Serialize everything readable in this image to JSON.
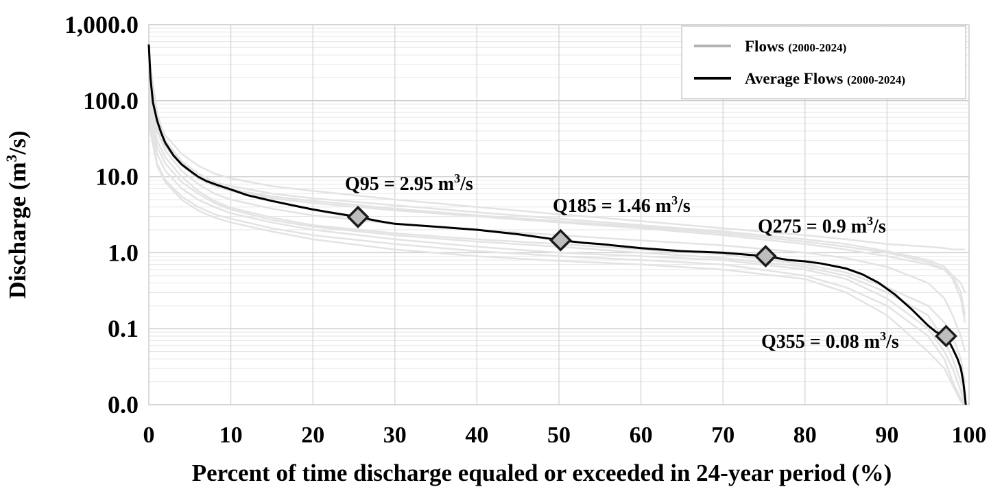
{
  "chart_data": {
    "type": "line",
    "yscale": "log",
    "xlim": [
      0,
      100
    ],
    "ylim": [
      0.01,
      1000
    ],
    "grid": true,
    "legend_position": "top-right",
    "x_ticks": [
      "0",
      "10",
      "20",
      "30",
      "40",
      "50",
      "60",
      "70",
      "80",
      "90",
      "100"
    ],
    "y_ticks": [
      {
        "value": 1000,
        "label": "1,000.0"
      },
      {
        "value": 100,
        "label": "100.0"
      },
      {
        "value": 10,
        "label": "10.0"
      },
      {
        "value": 1,
        "label": "1.0"
      },
      {
        "value": 0.1,
        "label": "0.1"
      },
      {
        "value": 0.01,
        "label": "0.0"
      }
    ],
    "xlabel": "Percent of time discharge equaled or exceeded in 24-year period (%)",
    "ylabel": {
      "pre": "Discharge (m",
      "sup": "3",
      "post": "/s)"
    },
    "legend": [
      {
        "name": "Flows",
        "period": "(2000-2024)",
        "color": "#b3b3b3"
      },
      {
        "name": "Average Flows",
        "period": "(2000-2024)",
        "color": "#000000"
      }
    ],
    "series": [
      {
        "name": "Average Flows (2000-2024)",
        "color": "#000000",
        "x": [
          0.0,
          0.2,
          0.5,
          1.0,
          1.5,
          2.0,
          3.0,
          4.0,
          5.0,
          6.0,
          7.0,
          8.0,
          10.0,
          12.0,
          15.0,
          18.0,
          20.0,
          22.0,
          25.5,
          28.0,
          30.0,
          35.0,
          40.0,
          45.0,
          50.2,
          53.0,
          55.0,
          60.0,
          65.0,
          70.0,
          72.0,
          75.2,
          78.0,
          80.0,
          82.0,
          85.0,
          87.0,
          89.0,
          91.0,
          93.0,
          95.0,
          96.0,
          97.2,
          98.0,
          98.6,
          99.0,
          99.3,
          99.5,
          99.6
        ],
        "y": [
          550,
          200,
          95,
          55,
          38,
          28,
          19,
          14.5,
          12,
          10,
          8.8,
          8,
          6.8,
          5.7,
          4.8,
          4.1,
          3.7,
          3.4,
          2.95,
          2.6,
          2.4,
          2.2,
          2.0,
          1.75,
          1.46,
          1.35,
          1.3,
          1.15,
          1.05,
          1.0,
          0.96,
          0.9,
          0.8,
          0.77,
          0.72,
          0.62,
          0.52,
          0.4,
          0.28,
          0.18,
          0.11,
          0.09,
          0.08,
          0.055,
          0.04,
          0.03,
          0.02,
          0.013,
          0.01
        ]
      },
      {
        "name": "Flows (2000-2024)",
        "color": "#e3e3e3",
        "x": [
          0,
          1,
          2,
          4,
          6,
          8,
          10,
          15,
          20,
          30,
          40,
          50,
          60,
          70,
          80,
          85,
          90,
          95,
          97,
          98,
          99,
          99.5
        ],
        "y": [
          120,
          30,
          18,
          10,
          6.5,
          4.8,
          3.9,
          2.9,
          2.3,
          1.8,
          1.5,
          1.3,
          1.1,
          0.95,
          0.7,
          0.55,
          0.35,
          0.2,
          0.12,
          0.08,
          0.04,
          0.02
        ]
      },
      {
        "name": "Flows (2000-2024)",
        "color": "#e3e3e3",
        "x": [
          0,
          1,
          2,
          4,
          6,
          8,
          10,
          15,
          20,
          30,
          40,
          50,
          60,
          70,
          80,
          85,
          90,
          95,
          97,
          98,
          99,
          99.5
        ],
        "y": [
          300,
          60,
          35,
          20,
          14,
          11,
          9.5,
          7.5,
          6.5,
          5.0,
          4.0,
          3.2,
          2.6,
          2.1,
          1.7,
          1.5,
          1.3,
          1.2,
          1.15,
          1.1,
          1.1,
          1.1
        ]
      },
      {
        "name": "Flows (2000-2024)",
        "color": "#e3e3e3",
        "x": [
          0,
          1,
          2,
          4,
          6,
          8,
          10,
          15,
          20,
          30,
          40,
          50,
          60,
          70,
          80,
          85,
          90,
          95,
          97,
          98,
          99,
          99.5
        ],
        "y": [
          80,
          20,
          12,
          7,
          5,
          4,
          3.3,
          2.5,
          2.0,
          1.5,
          1.2,
          1.0,
          0.9,
          0.8,
          0.6,
          0.45,
          0.25,
          0.1,
          0.05,
          0.03,
          0.015,
          0.01
        ]
      },
      {
        "name": "Flows (2000-2024)",
        "color": "#e3e3e3",
        "x": [
          0,
          1,
          2,
          4,
          6,
          8,
          10,
          15,
          20,
          30,
          40,
          50,
          60,
          70,
          80,
          85,
          90,
          95,
          97,
          98,
          99,
          99.5
        ],
        "y": [
          200,
          45,
          25,
          14,
          9.5,
          7.5,
          6.5,
          5.2,
          4.5,
          3.6,
          3.0,
          2.5,
          2.1,
          1.7,
          1.3,
          1.1,
          0.9,
          0.7,
          0.6,
          0.5,
          0.4,
          0.3
        ]
      },
      {
        "name": "Flows (2000-2024)",
        "color": "#e3e3e3",
        "x": [
          0,
          1,
          2,
          4,
          6,
          8,
          10,
          15,
          20,
          30,
          40,
          50,
          60,
          70,
          80,
          85,
          90,
          95,
          97,
          98,
          99,
          99.5
        ],
        "y": [
          60,
          15,
          9,
          5.5,
          4,
          3.2,
          2.8,
          2.1,
          1.7,
          1.3,
          1.05,
          0.9,
          0.8,
          0.7,
          0.5,
          0.35,
          0.2,
          0.08,
          0.04,
          0.02,
          0.012,
          0.01
        ]
      },
      {
        "name": "Flows (2000-2024)",
        "color": "#e3e3e3",
        "x": [
          0,
          1,
          2,
          4,
          6,
          8,
          10,
          15,
          20,
          30,
          40,
          50,
          60,
          70,
          80,
          85,
          90,
          95,
          97,
          98,
          99,
          99.5
        ],
        "y": [
          150,
          40,
          22,
          12,
          8,
          6,
          5,
          3.8,
          3.1,
          2.4,
          2.0,
          1.7,
          1.45,
          1.25,
          1.0,
          0.85,
          0.65,
          0.4,
          0.25,
          0.15,
          0.08,
          0.05
        ]
      },
      {
        "name": "Flows (2000-2024)",
        "color": "#e3e3e3",
        "x": [
          0,
          1,
          2,
          4,
          6,
          8,
          10,
          15,
          20,
          30,
          40,
          50,
          60,
          70,
          80,
          85,
          90,
          95,
          97,
          98,
          99,
          99.5
        ],
        "y": [
          100,
          25,
          15,
          8.5,
          6,
          4.5,
          3.7,
          2.7,
          2.2,
          1.7,
          1.4,
          1.2,
          1.0,
          0.85,
          0.65,
          0.5,
          0.3,
          0.15,
          0.07,
          0.04,
          0.02,
          0.012
        ]
      },
      {
        "name": "Flows (2000-2024)",
        "color": "#e3e3e3",
        "x": [
          0,
          1,
          2,
          4,
          6,
          8,
          10,
          15,
          20,
          30,
          40,
          50,
          60,
          70,
          80,
          85,
          90,
          95,
          97,
          98,
          99,
          99.5
        ],
        "y": [
          400,
          70,
          30,
          16,
          11,
          8.5,
          7.5,
          6,
          5.2,
          4.2,
          3.4,
          2.8,
          2.3,
          1.9,
          1.5,
          1.3,
          1.05,
          0.8,
          0.65,
          0.5,
          0.3,
          0.15
        ]
      },
      {
        "name": "Flows (2000-2024)",
        "color": "#e3e3e3",
        "x": [
          0,
          1,
          2,
          4,
          6,
          8,
          10,
          15,
          20,
          30,
          40,
          50,
          60,
          70,
          80,
          85,
          90,
          95,
          97,
          98,
          99,
          99.5
        ],
        "y": [
          50,
          14,
          8.5,
          5,
          3.6,
          2.9,
          2.5,
          1.9,
          1.5,
          1.1,
          0.9,
          0.78,
          0.7,
          0.6,
          0.45,
          0.3,
          0.15,
          0.05,
          0.03,
          0.018,
          0.011,
          0.01
        ]
      },
      {
        "name": "Flows (2000-2024)",
        "color": "#e3e3e3",
        "x": [
          0,
          1,
          2,
          4,
          6,
          8,
          10,
          15,
          20,
          30,
          40,
          50,
          60,
          70,
          80,
          85,
          90,
          95,
          97,
          98,
          99,
          99.5
        ],
        "y": [
          250,
          50,
          28,
          15,
          10,
          8,
          6.8,
          5.5,
          4.8,
          3.8,
          3.1,
          2.6,
          2.2,
          1.8,
          1.4,
          1.2,
          1.0,
          0.75,
          0.6,
          0.45,
          0.25,
          0.12
        ]
      }
    ],
    "markers": [
      {
        "x": 25.5,
        "y": 2.95
      },
      {
        "x": 50.2,
        "y": 1.46
      },
      {
        "x": 75.2,
        "y": 0.9
      },
      {
        "x": 97.2,
        "y": 0.08
      }
    ],
    "annotations": [
      {
        "pre": "Q95 = 2.95 m",
        "sup": "3",
        "post": "/s"
      },
      {
        "pre": "Q185 = 1.46 m",
        "sup": "3",
        "post": "/s"
      },
      {
        "pre": "Q275 = 0.9 m",
        "sup": "3",
        "post": "/s"
      },
      {
        "pre": "Q355 = 0.08 m",
        "sup": "3",
        "post": "/s"
      }
    ]
  }
}
